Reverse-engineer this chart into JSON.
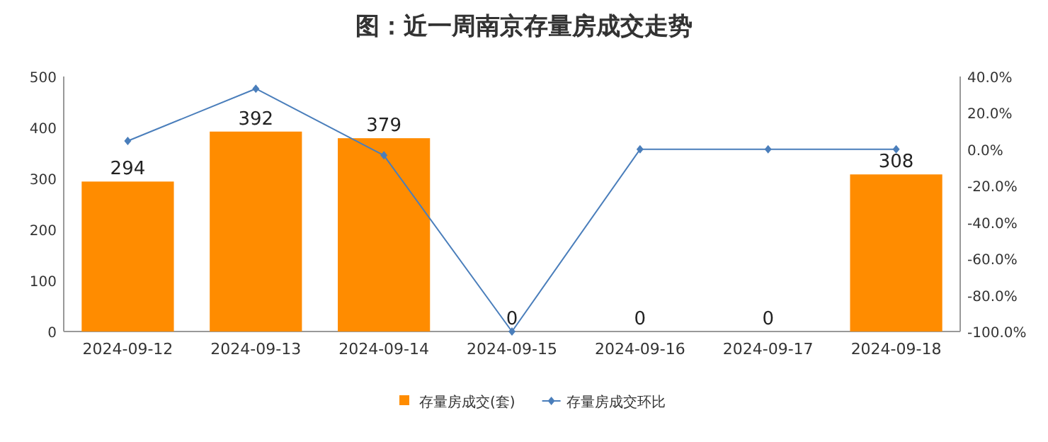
{
  "chart_data": {
    "type": "bar",
    "title": "图：近一周南京存量房成交走势",
    "categories": [
      "2024-09-12",
      "2024-09-13",
      "2024-09-14",
      "2024-09-15",
      "2024-09-16",
      "2024-09-17",
      "2024-09-18"
    ],
    "series": [
      {
        "name": "存量房成交(套)",
        "color": "#ff8c00",
        "values": [
          294,
          392,
          379,
          0,
          0,
          0,
          308
        ],
        "value_labels": [
          "294",
          "392",
          "379",
          "0",
          "0",
          "0",
          "308"
        ]
      },
      {
        "name": "存量房成交环比",
        "type": "line",
        "axis": "y2",
        "color": "#4a7ebb",
        "marker": "diamond",
        "values": [
          4.6,
          33.3,
          -3.3,
          -100,
          0,
          0,
          0
        ]
      }
    ],
    "ylim": [
      0,
      500
    ],
    "yticks": [
      0,
      100,
      200,
      300,
      400,
      500
    ],
    "y2lim": [
      -100,
      40
    ],
    "y2ticks": [
      {
        "value": -100,
        "label": "-100.0%"
      },
      {
        "value": -80,
        "label": "-80.0%"
      },
      {
        "value": -60,
        "label": "-60.0%"
      },
      {
        "value": -40,
        "label": "-40.0%"
      },
      {
        "value": -20,
        "label": "-20.0%"
      },
      {
        "value": 0,
        "label": "0.0%"
      },
      {
        "value": 20,
        "label": "20.0%"
      },
      {
        "value": 40,
        "label": "40.0%"
      }
    ],
    "legend": "bottom"
  }
}
